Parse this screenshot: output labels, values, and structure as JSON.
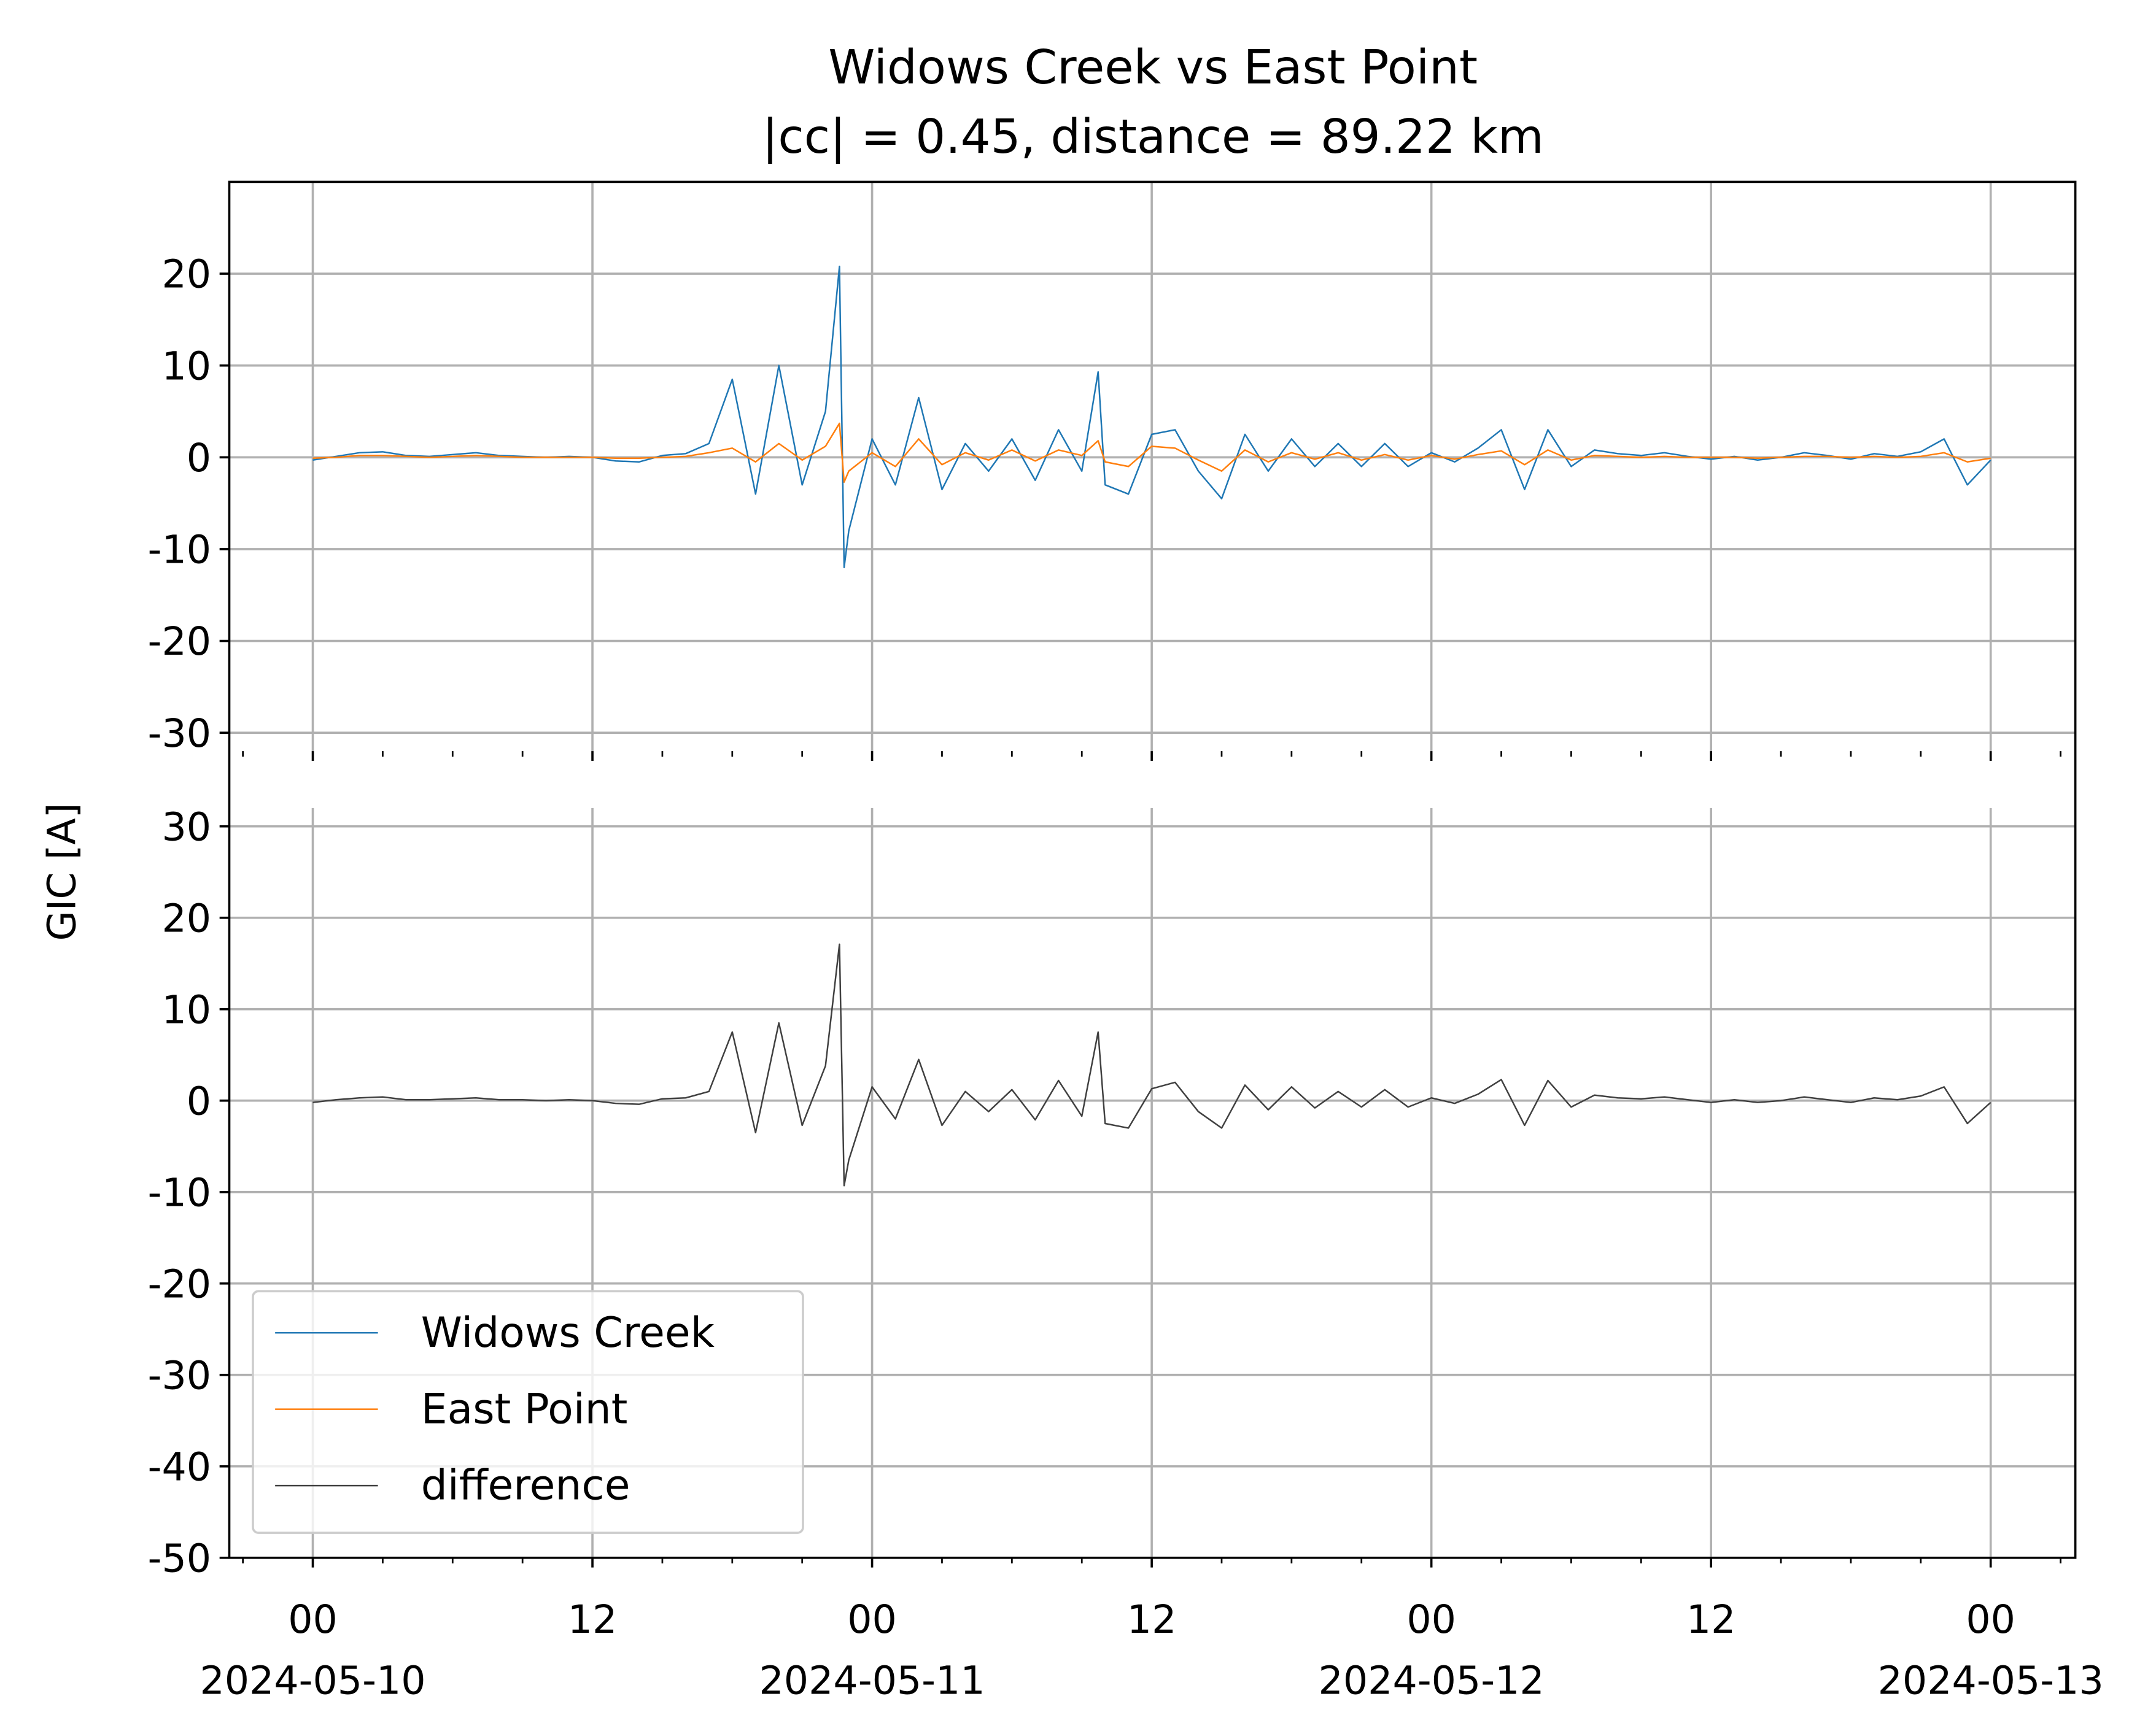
{
  "chart_data": {
    "type": "line",
    "title": "Widows Creek vs East Point",
    "subtitle": "|cc| = 0.45, distance = 89.22 km",
    "ylabel": "GIC [A]",
    "grid": true,
    "legend": "lower left",
    "xlim": [
      "2024-05-09 20:25",
      "2024-05-13 03:38"
    ],
    "xticks": [
      {
        "value": "2024-05-10 00:00",
        "label": [
          "00",
          "2024-05-10"
        ]
      },
      {
        "value": "2024-05-10 12:00",
        "label": [
          "12"
        ]
      },
      {
        "value": "2024-05-11 00:00",
        "label": [
          "00",
          "2024-05-11"
        ]
      },
      {
        "value": "2024-05-11 12:00",
        "label": [
          "12"
        ]
      },
      {
        "value": "2024-05-12 00:00",
        "label": [
          "00",
          "2024-05-12"
        ]
      },
      {
        "value": "2024-05-12 12:00",
        "label": [
          "12"
        ]
      },
      {
        "value": "2024-05-13 00:00",
        "label": [
          "00",
          "2024-05-13"
        ]
      }
    ],
    "x": [
      "2024-05-10 00:00",
      "2024-05-10 01:00",
      "2024-05-10 02:00",
      "2024-05-10 03:00",
      "2024-05-10 04:00",
      "2024-05-10 05:00",
      "2024-05-10 06:00",
      "2024-05-10 07:00",
      "2024-05-10 08:00",
      "2024-05-10 09:00",
      "2024-05-10 10:00",
      "2024-05-10 11:00",
      "2024-05-10 12:00",
      "2024-05-10 13:00",
      "2024-05-10 14:00",
      "2024-05-10 15:00",
      "2024-05-10 16:00",
      "2024-05-10 17:00",
      "2024-05-10 18:00",
      "2024-05-10 19:00",
      "2024-05-10 20:00",
      "2024-05-10 21:00",
      "2024-05-10 22:00",
      "2024-05-10 22:36",
      "2024-05-10 22:48",
      "2024-05-10 23:00",
      "2024-05-11 00:00",
      "2024-05-11 01:00",
      "2024-05-11 02:00",
      "2024-05-11 03:00",
      "2024-05-11 04:00",
      "2024-05-11 05:00",
      "2024-05-11 06:00",
      "2024-05-11 07:00",
      "2024-05-11 08:00",
      "2024-05-11 09:00",
      "2024-05-11 09:42",
      "2024-05-11 10:00",
      "2024-05-11 11:00",
      "2024-05-11 12:00",
      "2024-05-11 13:00",
      "2024-05-11 14:00",
      "2024-05-11 15:00",
      "2024-05-11 16:00",
      "2024-05-11 17:00",
      "2024-05-11 18:00",
      "2024-05-11 19:00",
      "2024-05-11 20:00",
      "2024-05-11 21:00",
      "2024-05-11 22:00",
      "2024-05-11 23:00",
      "2024-05-12 00:00",
      "2024-05-12 01:00",
      "2024-05-12 02:00",
      "2024-05-12 03:00",
      "2024-05-12 04:00",
      "2024-05-12 05:00",
      "2024-05-12 06:00",
      "2024-05-12 07:00",
      "2024-05-12 08:00",
      "2024-05-12 09:00",
      "2024-05-12 10:00",
      "2024-05-12 11:00",
      "2024-05-12 12:00",
      "2024-05-12 13:00",
      "2024-05-12 14:00",
      "2024-05-12 15:00",
      "2024-05-12 16:00",
      "2024-05-12 17:00",
      "2024-05-12 18:00",
      "2024-05-12 19:00",
      "2024-05-12 20:00",
      "2024-05-12 21:00",
      "2024-05-12 22:00",
      "2024-05-12 23:00",
      "2024-05-13 00:00"
    ],
    "panels": [
      {
        "ylim": [
          -32,
          30
        ],
        "yticks": [
          -30,
          -20,
          -10,
          0,
          10,
          20
        ],
        "series": [
          {
            "name": "Widows Creek",
            "color": "#1f77b4",
            "values": [
              -0.3,
              0.1,
              0.5,
              0.6,
              0.2,
              0.1,
              0.3,
              0.5,
              0.2,
              0.1,
              0,
              0.1,
              0,
              -0.4,
              -0.5,
              0.2,
              0.4,
              1.5,
              8.5,
              -4,
              10,
              -3,
              5,
              20.8,
              -12,
              -8,
              2,
              -3,
              6.5,
              -3.5,
              1.5,
              -1.5,
              2,
              -2.5,
              3,
              -1.5,
              9.3,
              -3,
              -4,
              2.5,
              3,
              -1.5,
              -4.5,
              2.5,
              -1.5,
              2,
              -1,
              1.5,
              -1,
              1.5,
              -1,
              0.5,
              -0.5,
              1,
              3,
              -3.5,
              3,
              -1,
              0.8,
              0.4,
              0.2,
              0.5,
              0.1,
              -0.2,
              0.1,
              -0.3,
              0,
              0.5,
              0.2,
              -0.2,
              0.4,
              0.1,
              0.6,
              2,
              -3,
              -0.3
            ]
          },
          {
            "name": "East Point",
            "color": "#ff7f0e",
            "values": [
              -0.1,
              0,
              0.2,
              0.2,
              0.1,
              0,
              0.1,
              0.2,
              0.1,
              0,
              0,
              0,
              0,
              -0.1,
              -0.1,
              0,
              0.1,
              0.5,
              1,
              -0.5,
              1.5,
              -0.3,
              1.2,
              3.7,
              -2.7,
              -1.5,
              0.5,
              -1,
              2,
              -0.8,
              0.5,
              -0.3,
              0.8,
              -0.4,
              0.8,
              0.2,
              1.8,
              -0.5,
              -1,
              1.2,
              1,
              -0.3,
              -1.5,
              0.8,
              -0.5,
              0.5,
              -0.2,
              0.5,
              -0.3,
              0.3,
              -0.3,
              0.2,
              -0.2,
              0.3,
              0.7,
              -0.8,
              0.8,
              -0.3,
              0.2,
              0.1,
              0,
              0.1,
              0,
              0,
              0,
              -0.1,
              0,
              0.1,
              0.1,
              0,
              0.1,
              0,
              0.1,
              0.5,
              -0.5,
              -0.1
            ]
          }
        ]
      },
      {
        "ylim": [
          -50,
          32
        ],
        "yticks": [
          -50,
          -40,
          -30,
          -20,
          -10,
          0,
          10,
          20,
          30
        ],
        "series": [
          {
            "name": "difference",
            "color": "#404040",
            "values": [
              -0.2,
              0.1,
              0.3,
              0.4,
              0.1,
              0.1,
              0.2,
              0.3,
              0.1,
              0.1,
              0,
              0.1,
              0,
              -0.3,
              -0.4,
              0.2,
              0.3,
              1,
              7.5,
              -3.5,
              8.5,
              -2.7,
              3.8,
              17.1,
              -9.3,
              -6.5,
              1.5,
              -2,
              4.5,
              -2.7,
              1,
              -1.2,
              1.2,
              -2.1,
              2.2,
              -1.7,
              7.5,
              -2.5,
              -3,
              1.3,
              2,
              -1.2,
              -3,
              1.7,
              -1,
              1.5,
              -0.8,
              1,
              -0.7,
              1.2,
              -0.7,
              0.3,
              -0.3,
              0.7,
              2.3,
              -2.7,
              2.2,
              -0.7,
              0.6,
              0.3,
              0.2,
              0.4,
              0.1,
              -0.2,
              0.1,
              -0.2,
              0,
              0.4,
              0.1,
              -0.2,
              0.3,
              0.1,
              0.5,
              1.5,
              -2.5,
              -0.2
            ]
          }
        ]
      }
    ]
  }
}
